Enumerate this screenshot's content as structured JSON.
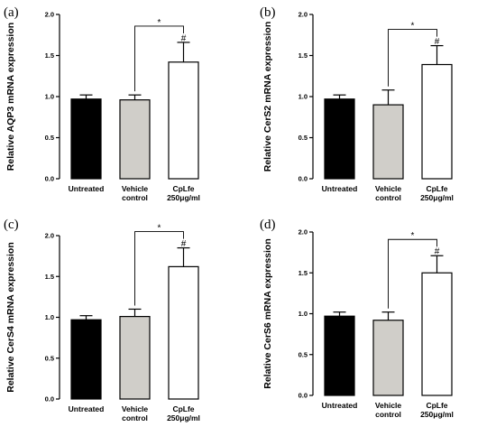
{
  "colors": {
    "untreated": "#000000",
    "vehicle": "#d0cec9",
    "cplfe": "#ffffff",
    "axis": "#000000"
  },
  "chart_data": [
    {
      "type": "bar",
      "panel_label": "(a)",
      "ylabel": "Relative AQP3 mRNA expression",
      "ylim": [
        0,
        2.0
      ],
      "yticks": [
        "0.0",
        "0.5",
        "1.0",
        "1.5",
        "2.0"
      ],
      "categories": [
        [
          "Untreated"
        ],
        [
          "Vehicle",
          "control"
        ],
        [
          "CpLfe",
          "250μg/ml"
        ]
      ],
      "values": [
        0.97,
        0.96,
        1.42
      ],
      "errors": [
        0.05,
        0.06,
        0.24
      ],
      "annotations": {
        "star": "*",
        "hash": "#"
      }
    },
    {
      "type": "bar",
      "panel_label": "(b)",
      "ylabel": "Relative CerS2 mRNA expression",
      "ylim": [
        0,
        2.0
      ],
      "yticks": [
        "0.0",
        "0.5",
        "1.0",
        "1.5",
        "2.0"
      ],
      "categories": [
        [
          "Untreated"
        ],
        [
          "Vehicle",
          "control"
        ],
        [
          "CpLfe",
          "250μg/ml"
        ]
      ],
      "values": [
        0.97,
        0.9,
        1.39
      ],
      "errors": [
        0.05,
        0.18,
        0.23
      ],
      "annotations": {
        "star": "*",
        "hash": "#"
      }
    },
    {
      "type": "bar",
      "panel_label": "(c)",
      "ylabel": "Relative CerS4 mRNA expression",
      "ylim": [
        0,
        2.0
      ],
      "yticks": [
        "0.0",
        "0.5",
        "1.0",
        "1.5",
        "2.0"
      ],
      "categories": [
        [
          "Untreated"
        ],
        [
          "Vehicle",
          "control"
        ],
        [
          "CpLfe",
          "250μg/ml"
        ]
      ],
      "values": [
        0.97,
        1.01,
        1.62
      ],
      "errors": [
        0.05,
        0.09,
        0.23
      ],
      "annotations": {
        "star": "*",
        "hash": "#"
      }
    },
    {
      "type": "bar",
      "panel_label": "(d)",
      "ylabel": "Relative CerS6 mRNA expression",
      "ylim": [
        0,
        2.0
      ],
      "yticks": [
        "0.0",
        "0.5",
        "1.0",
        "1.5",
        "2.0"
      ],
      "categories": [
        [
          "Untreated"
        ],
        [
          "Vehicle",
          "control"
        ],
        [
          "CpLfe",
          "250μg/ml"
        ]
      ],
      "values": [
        0.97,
        0.92,
        1.5
      ],
      "errors": [
        0.05,
        0.1,
        0.21
      ],
      "annotations": {
        "star": "*",
        "hash": "#"
      }
    }
  ]
}
